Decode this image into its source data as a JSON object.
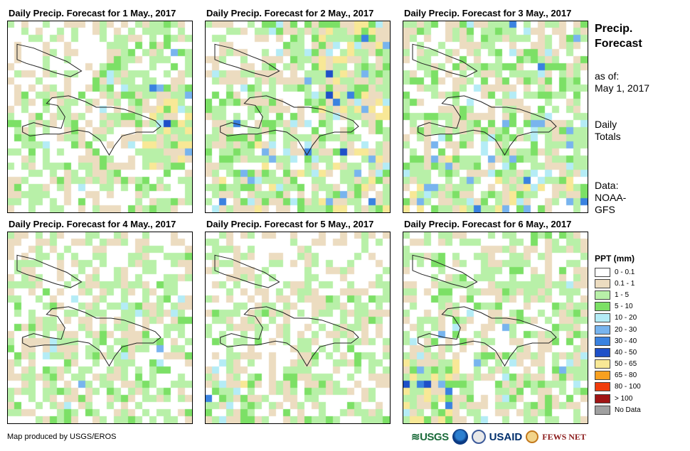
{
  "panels": [
    {
      "title": "Daily Precip. Forecast for 1 May., 2017",
      "seed": 11,
      "pattern": "p1"
    },
    {
      "title": "Daily Precip. Forecast for 2 May., 2017",
      "seed": 23,
      "pattern": "p2"
    },
    {
      "title": "Daily Precip. Forecast for 3 May., 2017",
      "seed": 37,
      "pattern": "p3"
    },
    {
      "title": "Daily Precip. Forecast for 4 May., 2017",
      "seed": 41,
      "pattern": "p4"
    },
    {
      "title": "Daily Precip. Forecast for 5 May., 2017",
      "seed": 59,
      "pattern": "p5"
    },
    {
      "title": "Daily Precip. Forecast for 6 May., 2017",
      "seed": 67,
      "pattern": "p6"
    }
  ],
  "sidebar": {
    "title_line1": "Precip.",
    "title_line2": "Forecast",
    "asof_label": "as of:",
    "asof_date": "May 1, 2017",
    "totals_line1": "Daily",
    "totals_line2": "Totals",
    "data_line1": "Data:",
    "data_line2": "NOAA-",
    "data_line3": "GFS"
  },
  "legend": {
    "title": "PPT (mm)",
    "classes": [
      {
        "label": "0 - 0.1",
        "color": "#ffffff"
      },
      {
        "label": "0.1 - 1",
        "color": "#ecdcc0"
      },
      {
        "label": "1 - 5",
        "color": "#b8f0a8"
      },
      {
        "label": "5 - 10",
        "color": "#7ce066"
      },
      {
        "label": "10 - 20",
        "color": "#b4ecf6"
      },
      {
        "label": "20 - 30",
        "color": "#78b4ee"
      },
      {
        "label": "30 - 40",
        "color": "#3a82e0"
      },
      {
        "label": "40 - 50",
        "color": "#1e50c8"
      },
      {
        "label": "50 - 65",
        "color": "#f8e896"
      },
      {
        "label": "65 - 80",
        "color": "#f8a020"
      },
      {
        "label": "80 - 100",
        "color": "#f03c0c"
      },
      {
        "label": "> 100",
        "color": "#a01414"
      },
      {
        "label": "No Data",
        "color": "#a0a0a0"
      }
    ]
  },
  "footer": {
    "credit": "Map produced by USGS/EROS"
  },
  "logos": {
    "usgs": "≋USGS",
    "usaid": "USAID",
    "fews": "FEWS NET"
  }
}
